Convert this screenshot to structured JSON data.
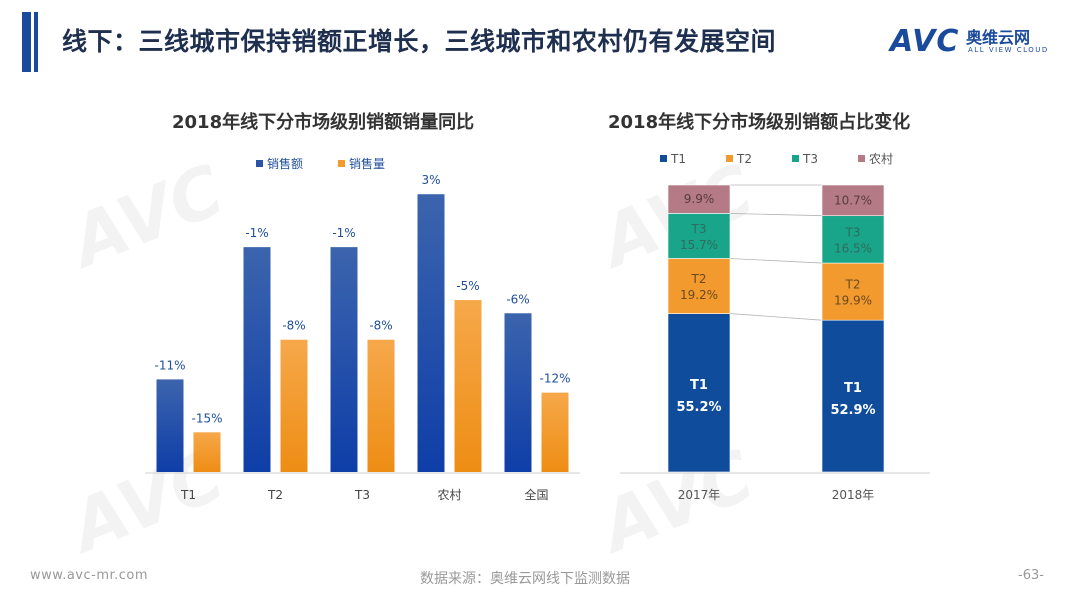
{
  "header": {
    "title": "线下：三线城市保持销额正增长，三线城市和农村仍有发展空间",
    "logo_mark": "AVC",
    "logo_cn": "奥维云网",
    "logo_en": "ALL VIEW CLOUD",
    "accent_color": "#1a4a9c"
  },
  "footer": {
    "url": "www.avc-mr.com",
    "source": "数据来源：奥维云网线下监测数据",
    "page": "-63-"
  },
  "chart_data": [
    {
      "type": "bar",
      "title": "2018年线下分市场级别销额销量同比",
      "categories": [
        "T1",
        "T2",
        "T3",
        "农村",
        "全国"
      ],
      "series": [
        {
          "name": "销售额",
          "values": [
            -11,
            -1,
            -1,
            3,
            -6
          ],
          "labels": [
            "-11%",
            "-1%",
            "-1%",
            "3%",
            "-6%"
          ],
          "color": "#2a55a6"
        },
        {
          "name": "销售量",
          "values": [
            -15,
            -8,
            -8,
            -5,
            -12
          ],
          "labels": [
            "-15%",
            "-8%",
            "-8%",
            "-5%",
            "-12%"
          ],
          "color": "#f39a2e"
        }
      ],
      "ylim": [
        -18,
        4
      ],
      "legend": "top",
      "grid": false
    },
    {
      "type": "bar",
      "stacked": true,
      "percent": true,
      "title": "2018年线下分市场级别销额占比变化",
      "categories": [
        "2017年",
        "2018年"
      ],
      "series": [
        {
          "name": "T1",
          "values": [
            55.2,
            52.9
          ],
          "color": "#0f4c9c"
        },
        {
          "name": "T2",
          "values": [
            19.2,
            19.9
          ],
          "color": "#f39a2e"
        },
        {
          "name": "T3",
          "values": [
            15.7,
            16.5
          ],
          "color": "#19a58a"
        },
        {
          "name": "农村",
          "values": [
            9.9,
            10.7
          ],
          "color": "#b47a85"
        }
      ],
      "ylim": [
        0,
        100
      ],
      "legend": "top",
      "grid": false
    }
  ]
}
